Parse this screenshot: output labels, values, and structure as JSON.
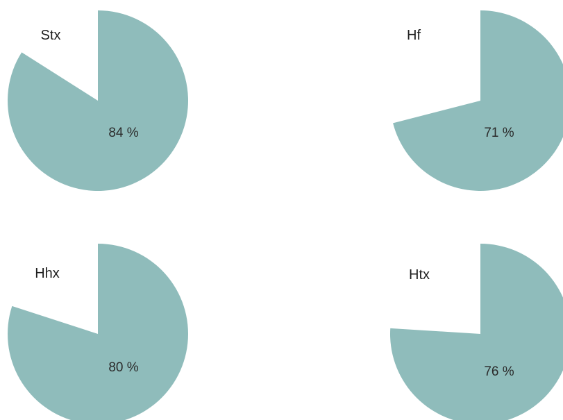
{
  "chart_data": [
    {
      "type": "pie",
      "title": "Stx",
      "categories": [
        "Stx",
        ""
      ],
      "values": [
        84,
        16
      ],
      "value_label": "84 %",
      "colors": [
        "#8fbcbb",
        "#ffffff"
      ]
    },
    {
      "type": "pie",
      "title": "Hf",
      "categories": [
        "Hf",
        ""
      ],
      "values": [
        71,
        29
      ],
      "value_label": "71 %",
      "colors": [
        "#8fbcbb",
        "#ffffff"
      ]
    },
    {
      "type": "pie",
      "title": "Hhx",
      "categories": [
        "Hhx",
        ""
      ],
      "values": [
        80,
        20
      ],
      "value_label": "80 %",
      "colors": [
        "#8fbcbb",
        "#ffffff"
      ]
    },
    {
      "type": "pie",
      "title": "Htx",
      "categories": [
        "Htx",
        ""
      ],
      "values": [
        76,
        24
      ],
      "value_label": "76 %",
      "colors": [
        "#8fbcbb",
        "#ffffff"
      ]
    }
  ]
}
